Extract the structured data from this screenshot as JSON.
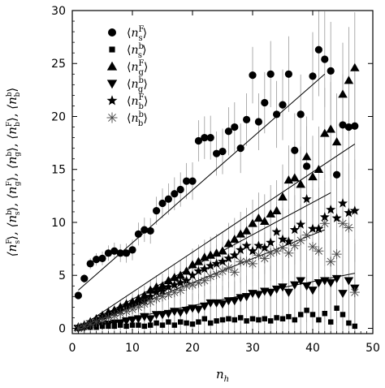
{
  "chart_data": {
    "type": "scatter",
    "title": "",
    "xlabel": "n_h",
    "ylabel": "⟨n_s^F⟩, ⟨n_s^b⟩, ⟨n_g^F⟩, ⟨n_g^b⟩, ⟨n_b^F⟩, ⟨n_b^b⟩",
    "xlim": [
      0,
      50
    ],
    "ylim": [
      -0.5,
      30
    ],
    "x_ticks": [
      0,
      10,
      20,
      30,
      40,
      50
    ],
    "y_ticks": [
      0,
      5,
      10,
      15,
      20,
      25,
      30
    ],
    "legend_position": "top-left",
    "series": [
      {
        "name": "⟨n_s^F⟩",
        "marker": "circle",
        "x": [
          1,
          2,
          3,
          4,
          5,
          6,
          7,
          8,
          9,
          10,
          11,
          12,
          13,
          14,
          15,
          16,
          17,
          18,
          19,
          20,
          21,
          22,
          23,
          24,
          25,
          26,
          27,
          28,
          29,
          30,
          31,
          32,
          33,
          34,
          35,
          36,
          37,
          38,
          39,
          40,
          41,
          42,
          43,
          44,
          45,
          46,
          47
        ],
        "values": [
          3.1,
          4.7,
          6.1,
          6.5,
          6.6,
          7.1,
          7.3,
          7.1,
          7.1,
          7.4,
          8.9,
          9.3,
          9.2,
          11.1,
          11.8,
          12.2,
          12.7,
          13.1,
          13.9,
          13.9,
          17.7,
          18.0,
          18.0,
          16.5,
          16.7,
          18.6,
          19.0,
          17.0,
          19.7,
          23.9,
          19.5,
          21.3,
          24.0,
          20.2,
          21.1,
          24.0,
          16.8,
          20.2,
          15.3,
          23.8,
          26.3,
          25.4,
          24.3,
          14.5,
          19.2,
          19.0,
          19.1
        ]
      },
      {
        "name": "⟨n_s^b⟩",
        "marker": "square",
        "x": [
          1,
          2,
          3,
          4,
          5,
          6,
          7,
          8,
          9,
          10,
          11,
          12,
          13,
          14,
          15,
          16,
          17,
          18,
          19,
          20,
          21,
          22,
          23,
          24,
          25,
          26,
          27,
          28,
          29,
          30,
          31,
          32,
          33,
          34,
          35,
          36,
          37,
          38,
          39,
          40,
          41,
          42,
          43,
          44,
          45,
          46,
          47
        ],
        "values": [
          0.0,
          0.1,
          0.1,
          0.1,
          0.2,
          0.2,
          0.2,
          0.3,
          0.2,
          0.3,
          0.3,
          0.2,
          0.3,
          0.5,
          0.3,
          0.6,
          0.3,
          0.6,
          0.5,
          0.4,
          0.6,
          0.9,
          0.5,
          0.7,
          0.8,
          0.9,
          0.8,
          1.0,
          0.7,
          0.9,
          0.8,
          0.9,
          0.7,
          1.0,
          0.9,
          1.1,
          0.8,
          1.3,
          1.7,
          1.3,
          0.8,
          1.4,
          0.6,
          1.9,
          1.3,
          0.5,
          0.2
        ]
      },
      {
        "name": "⟨n_g^F⟩",
        "marker": "triangle-up",
        "x": [
          1,
          2,
          3,
          4,
          5,
          6,
          7,
          8,
          9,
          10,
          11,
          12,
          13,
          14,
          15,
          16,
          17,
          18,
          19,
          20,
          21,
          22,
          23,
          24,
          25,
          26,
          27,
          28,
          29,
          30,
          31,
          32,
          33,
          34,
          35,
          36,
          37,
          38,
          39,
          40,
          41,
          42,
          43,
          44,
          45,
          46,
          47
        ],
        "values": [
          0.1,
          0.3,
          0.6,
          0.9,
          1.2,
          1.5,
          1.7,
          2.0,
          2.3,
          2.5,
          2.8,
          3.1,
          3.6,
          3.9,
          4.0,
          4.5,
          4.8,
          5.0,
          5.4,
          6.0,
          6.3,
          6.7,
          6.9,
          7.1,
          7.3,
          8.0,
          8.4,
          8.9,
          9.2,
          9.9,
          10.4,
          10.1,
          10.8,
          11.1,
          12.4,
          14.0,
          14.2,
          13.6,
          16.2,
          14.3,
          15.0,
          18.4,
          18.8,
          17.6,
          22.1,
          23.4,
          24.6
        ]
      },
      {
        "name": "⟨n_g^b⟩",
        "marker": "triangle-down",
        "x": [
          1,
          2,
          3,
          4,
          5,
          6,
          7,
          8,
          9,
          10,
          11,
          12,
          13,
          14,
          15,
          16,
          17,
          18,
          19,
          20,
          21,
          22,
          23,
          24,
          25,
          26,
          27,
          28,
          29,
          30,
          31,
          32,
          33,
          34,
          35,
          36,
          37,
          38,
          39,
          40,
          41,
          42,
          43,
          44,
          45,
          46,
          47
        ],
        "values": [
          0.0,
          0.1,
          0.2,
          0.3,
          0.3,
          0.4,
          0.5,
          0.5,
          0.7,
          0.8,
          0.9,
          1.1,
          0.9,
          1.3,
          1.3,
          1.4,
          1.6,
          1.5,
          1.7,
          1.9,
          1.8,
          2.1,
          2.4,
          2.4,
          2.3,
          2.6,
          2.6,
          2.9,
          3.0,
          3.3,
          3.2,
          3.5,
          3.4,
          3.7,
          3.9,
          3.4,
          4.1,
          4.5,
          4.0,
          3.6,
          4.3,
          4.5,
          4.3,
          4.7,
          3.3,
          4.5,
          3.8
        ]
      },
      {
        "name": "⟨n_b^F⟩",
        "marker": "star",
        "x": [
          1,
          2,
          3,
          4,
          5,
          6,
          7,
          8,
          9,
          10,
          11,
          12,
          13,
          14,
          15,
          16,
          17,
          18,
          19,
          20,
          21,
          22,
          23,
          24,
          25,
          26,
          27,
          28,
          29,
          30,
          31,
          32,
          33,
          34,
          35,
          36,
          37,
          38,
          39,
          40,
          41,
          42,
          43,
          44,
          45,
          46,
          47
        ],
        "values": [
          0.1,
          0.3,
          0.6,
          0.8,
          1.1,
          1.3,
          1.5,
          1.7,
          2.0,
          2.2,
          2.4,
          2.6,
          3.0,
          3.4,
          3.5,
          3.9,
          4.1,
          4.3,
          4.5,
          5.0,
          5.4,
          5.6,
          5.9,
          6.1,
          6.3,
          6.6,
          6.9,
          7.4,
          7.8,
          7.3,
          7.8,
          7.6,
          8.1,
          9.1,
          8.4,
          8.2,
          9.3,
          9.8,
          12.2,
          9.4,
          9.4,
          10.5,
          11.2,
          10.4,
          11.8,
          10.9,
          11.1
        ]
      },
      {
        "name": "⟨n_b^b⟩",
        "marker": "asterisk",
        "x": [
          1,
          2,
          3,
          4,
          5,
          6,
          7,
          8,
          9,
          10,
          11,
          12,
          13,
          14,
          15,
          16,
          17,
          18,
          19,
          20,
          21,
          22,
          23,
          24,
          25,
          26,
          27,
          28,
          29,
          30,
          31,
          32,
          33,
          34,
          35,
          36,
          37,
          38,
          39,
          40,
          41,
          42,
          43,
          44,
          45,
          46,
          47
        ],
        "values": [
          0.0,
          0.2,
          0.4,
          0.6,
          0.8,
          1.0,
          1.2,
          1.4,
          1.6,
          1.8,
          2.0,
          2.3,
          2.5,
          2.8,
          3.0,
          3.2,
          3.4,
          3.6,
          4.0,
          4.1,
          4.3,
          4.5,
          4.9,
          5.1,
          5.4,
          5.7,
          5.3,
          6.3,
          6.3,
          6.1,
          6.9,
          6.6,
          7.1,
          7.3,
          7.6,
          7.1,
          7.8,
          8.3,
          8.8,
          7.7,
          7.3,
          9.9,
          6.3,
          7.0,
          9.9,
          9.5,
          3.4
        ]
      }
    ],
    "fit_lines": [
      {
        "series": "⟨n_s^F⟩",
        "x": [
          1,
          42
        ],
        "y": [
          3.6,
          24.0
        ]
      },
      {
        "series": "⟨n_g^F⟩",
        "x": [
          1,
          47
        ],
        "y": [
          0.0,
          17.4
        ]
      },
      {
        "series": "⟨n_b^F⟩",
        "x": [
          1,
          43
        ],
        "y": [
          0.0,
          12.8
        ]
      },
      {
        "series": "⟨n_b^b⟩",
        "x": [
          1,
          42
        ],
        "y": [
          0.0,
          9.3
        ]
      },
      {
        "series": "⟨n_g^b⟩",
        "x": [
          1,
          47
        ],
        "y": [
          0.0,
          5.2
        ]
      }
    ]
  }
}
